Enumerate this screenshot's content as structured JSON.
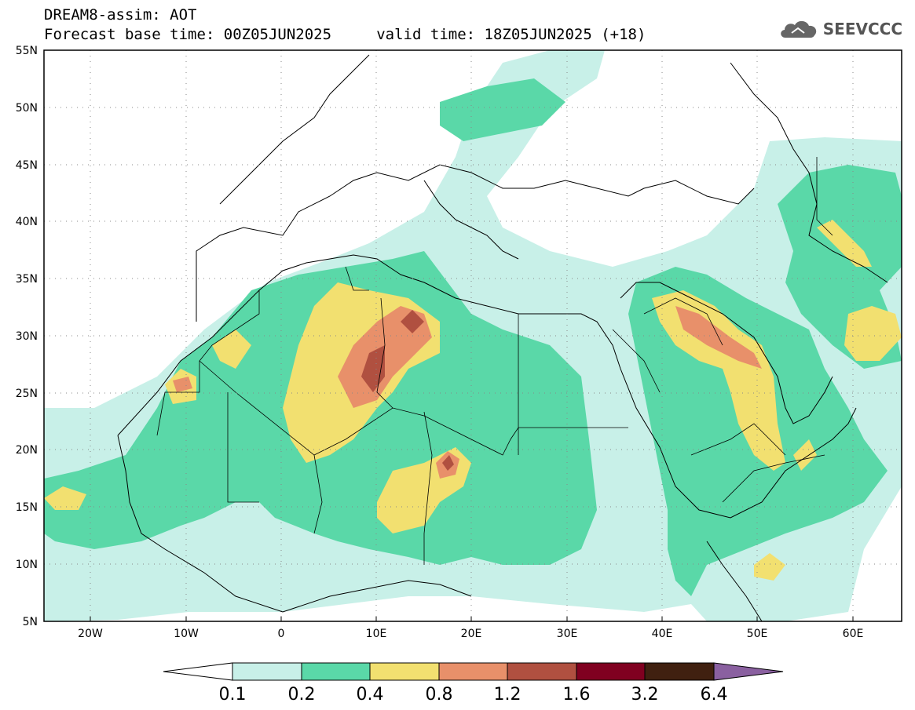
{
  "header": {
    "title": "DREAM8-assim: AOT",
    "base_time_line": "Forecast base time: 00Z05JUN2025     valid time: 18Z05JUN2025 (+18)",
    "logo_text": "SEEVCCC"
  },
  "map": {
    "variable": "AOT",
    "lon_range": [
      -25,
      65
    ],
    "lat_range": [
      5,
      55
    ],
    "lat_labels": [
      "5N",
      "10N",
      "15N",
      "20N",
      "25N",
      "30N",
      "35N",
      "40N",
      "45N",
      "50N",
      "55N"
    ],
    "lon_labels": [
      "20W",
      "10W",
      "0",
      "10E",
      "20E",
      "30E",
      "40E",
      "50E",
      "60E"
    ],
    "grid": true
  },
  "colorbar": {
    "levels": [
      "0.1",
      "0.2",
      "0.4",
      "0.8",
      "1.2",
      "1.6",
      "3.2",
      "6.4"
    ],
    "colors": [
      "#ffffff",
      "#c8f0e8",
      "#5ad8a8",
      "#f2e070",
      "#e8906a",
      "#b05040",
      "#800020",
      "#402010",
      "#8a60a0"
    ]
  },
  "icons": {
    "logo": "cloud-icon"
  }
}
